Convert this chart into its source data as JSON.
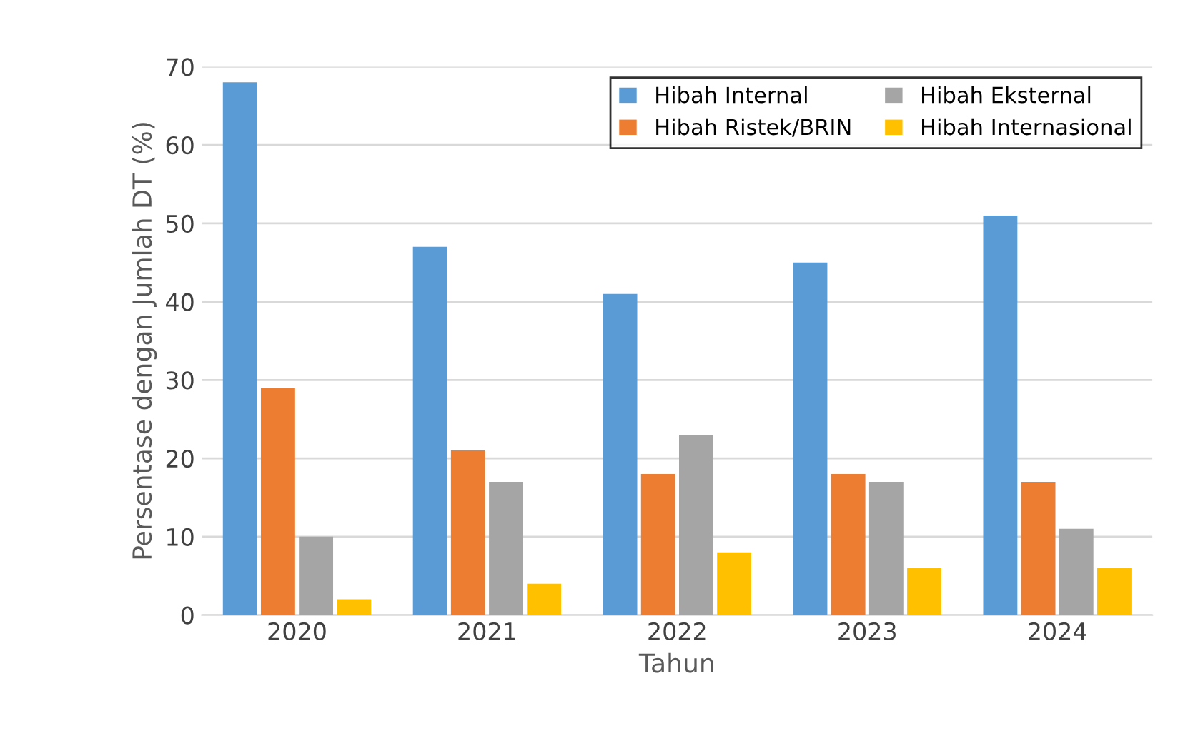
{
  "chart_data": {
    "type": "bar",
    "xlabel": "Tahun",
    "ylabel": "Persentase dengan Jumlah DT (%)",
    "categories": [
      "2020",
      "2021",
      "2022",
      "2023",
      "2024"
    ],
    "series": [
      {
        "name": "Hibah Internal",
        "color": "#5b9bd5",
        "values": [
          68,
          47,
          41,
          45,
          51
        ]
      },
      {
        "name": "Hibah Ristek/BRIN",
        "color": "#ed7d31",
        "values": [
          29,
          21,
          18,
          18,
          17
        ]
      },
      {
        "name": "Hibah Eksternal",
        "color": "#a5a5a5",
        "values": [
          10,
          17,
          23,
          17,
          11
        ]
      },
      {
        "name": "Hibah Internasional",
        "color": "#ffc000",
        "values": [
          2,
          4,
          8,
          6,
          6
        ]
      }
    ],
    "ylim": [
      0,
      70
    ],
    "yticks": [
      0,
      10,
      20,
      30,
      40,
      50,
      60,
      70
    ],
    "grid": "y",
    "legend": "top right"
  }
}
